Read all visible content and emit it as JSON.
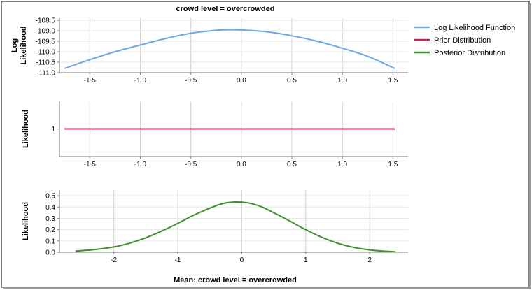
{
  "chart_data": {
    "title": "crowd level = overcrowded",
    "xlabel": "Mean: crowd level = overcrowded",
    "legend": {
      "placement": "top-right",
      "items": [
        {
          "name": "Log Likelihood Function",
          "color": "#6fa8dc"
        },
        {
          "name": "Prior Distribution",
          "color": "#c0245a"
        },
        {
          "name": "Posterior Distribution",
          "color": "#3f8f2f"
        }
      ]
    },
    "panels": [
      {
        "type": "line",
        "series_name": "Log Likelihood Function",
        "ylabel": [
          "Log",
          "Likelihood"
        ],
        "color": "#6fa8dc",
        "xlim": [
          -1.8,
          1.65
        ],
        "ylim": [
          -111.0,
          -108.4
        ],
        "xticks": [
          "-1.5",
          "-1.0",
          "-0.5",
          "0.0",
          "0.5",
          "1.0",
          "1.5"
        ],
        "yticks": [
          "-108.5",
          "-109.0",
          "-109.5",
          "-110.0",
          "-110.5",
          "-111.0"
        ],
        "x": [
          -1.75,
          -1.5,
          -1.25,
          -1.0,
          -0.75,
          -0.5,
          -0.25,
          -0.1,
          0.0,
          0.25,
          0.5,
          0.75,
          1.0,
          1.25,
          1.52
        ],
        "y": [
          -110.8,
          -110.38,
          -110.0,
          -109.68,
          -109.37,
          -109.12,
          -108.98,
          -108.95,
          -108.96,
          -109.05,
          -109.24,
          -109.5,
          -109.83,
          -110.22,
          -110.8
        ]
      },
      {
        "type": "line",
        "series_name": "Prior Distribution",
        "ylabel": [
          "Likelihood"
        ],
        "color": "#c0245a",
        "xlim": [
          -1.8,
          1.65
        ],
        "ylim": [
          0,
          2
        ],
        "xticks": [
          "-1.5",
          "-1.0",
          "-0.5",
          "0.0",
          "0.5",
          "1.0",
          "1.5"
        ],
        "yticks": [
          "1"
        ],
        "x": [
          -1.75,
          1.52
        ],
        "y": [
          1,
          1
        ]
      },
      {
        "type": "line",
        "series_name": "Posterior Distribution",
        "ylabel": [
          "Likelihood"
        ],
        "color": "#3f8f2f",
        "xlim": [
          -2.85,
          2.6
        ],
        "ylim": [
          0,
          0.55
        ],
        "xticks": [
          "-2",
          "-1",
          "0",
          "1",
          "2"
        ],
        "yticks": [
          "0.5",
          "0.4",
          "0.3",
          "0.2",
          "0.1",
          "0.0"
        ],
        "x": [
          -2.6,
          -2.3,
          -2.0,
          -1.75,
          -1.5,
          -1.25,
          -1.0,
          -0.75,
          -0.5,
          -0.3,
          -0.1,
          0.1,
          0.3,
          0.5,
          0.75,
          1.0,
          1.25,
          1.5,
          1.75,
          2.0,
          2.2,
          2.4
        ],
        "y": [
          0.01,
          0.024,
          0.047,
          0.081,
          0.128,
          0.188,
          0.256,
          0.328,
          0.39,
          0.43,
          0.445,
          0.437,
          0.404,
          0.35,
          0.276,
          0.2,
          0.133,
          0.08,
          0.043,
          0.021,
          0.011,
          0.005
        ]
      }
    ]
  }
}
